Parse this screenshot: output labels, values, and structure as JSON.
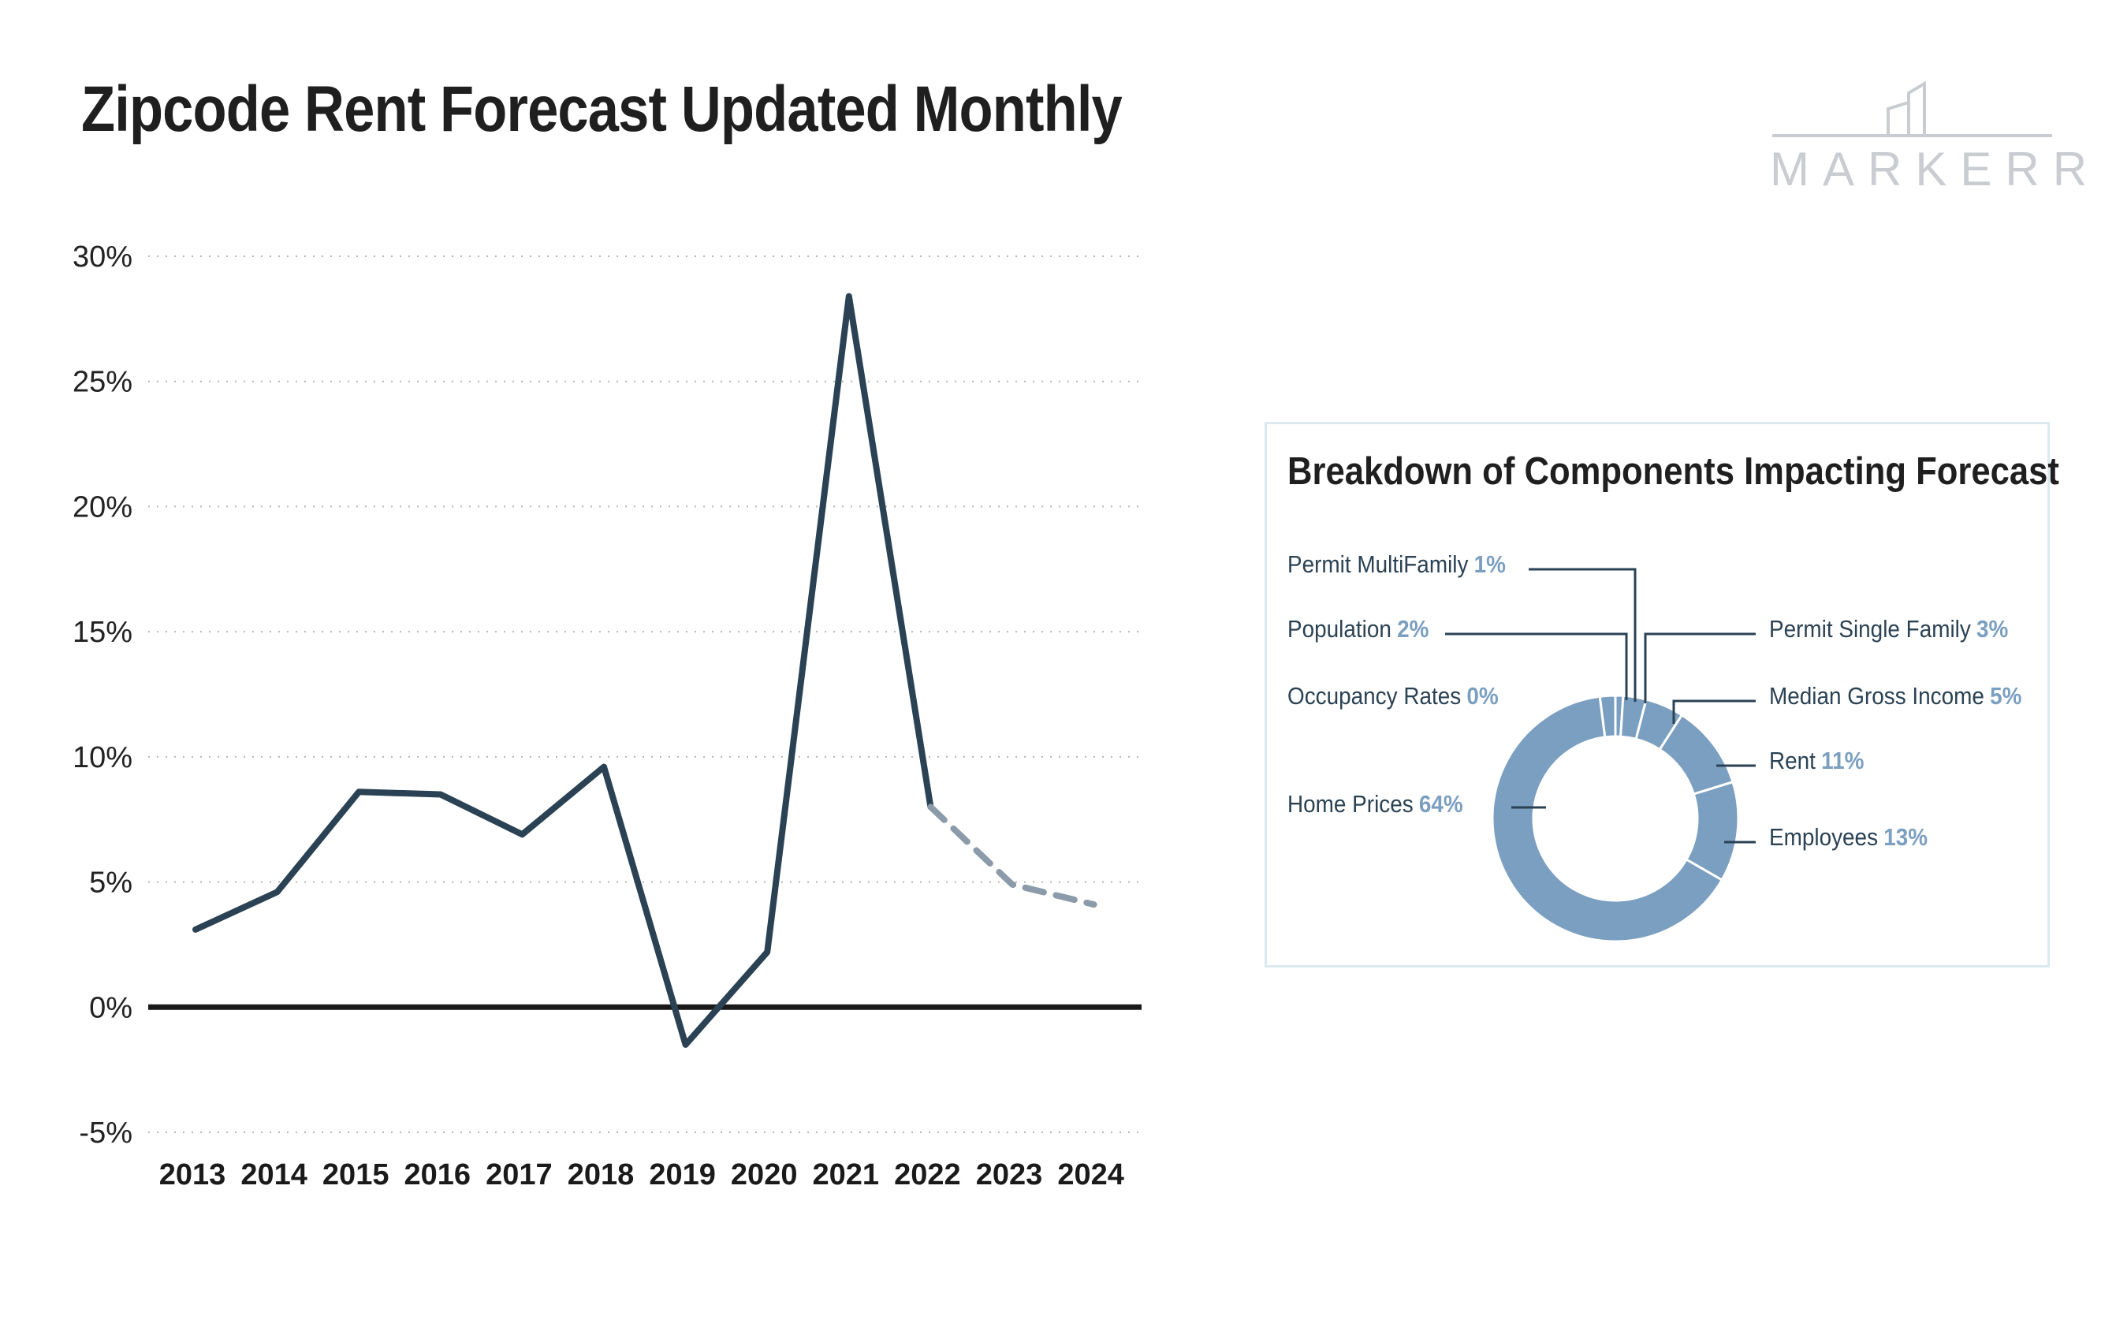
{
  "header": {
    "title": "Zipcode Rent Forecast Updated Monthly"
  },
  "logo": {
    "text": "MARKERR"
  },
  "colors": {
    "line": "#2a4254",
    "forecast": "#8c9ba9",
    "donut": "#7b9fc0",
    "axis": "#1a1a1a",
    "grid": "#b5b5b5"
  },
  "chart_data": [
    {
      "type": "line",
      "title": "Zipcode Rent Forecast Updated Monthly",
      "xlabel": "",
      "ylabel": "",
      "x": [
        "2013",
        "2014",
        "2015",
        "2016",
        "2017",
        "2018",
        "2019",
        "2020",
        "2021",
        "2022",
        "2023",
        "2024"
      ],
      "ytick_labels": [
        "30%",
        "25%",
        "20%",
        "15%",
        "10%",
        "5%",
        "0%",
        "-5%"
      ],
      "yticks": [
        30,
        25,
        20,
        15,
        10,
        5,
        0,
        -5
      ],
      "ylim": [
        -5,
        30
      ],
      "grid": true,
      "series": [
        {
          "style": "solid",
          "x": [
            2013,
            2014,
            2015,
            2016,
            2017,
            2018,
            2019,
            2020,
            2021,
            2022
          ],
          "values": [
            3.1,
            4.6,
            8.6,
            8.5,
            6.9,
            9.6,
            -1.5,
            2.2,
            28.4,
            8.0
          ]
        },
        {
          "style": "dashed",
          "x": [
            2022,
            2023,
            2024
          ],
          "values": [
            8.0,
            4.9,
            4.1
          ]
        }
      ]
    },
    {
      "type": "pie",
      "title": "Breakdown of Components Impacting Forecast",
      "slices": [
        {
          "label": "Permit MultiFamily",
          "value": 1,
          "pct": "1%"
        },
        {
          "label": "Permit Single Family",
          "value": 3,
          "pct": "3%"
        },
        {
          "label": "Median Gross Income",
          "value": 5,
          "pct": "5%"
        },
        {
          "label": "Rent",
          "value": 11,
          "pct": "11%"
        },
        {
          "label": "Employees",
          "value": 13,
          "pct": "13%"
        },
        {
          "label": "Home Prices",
          "value": 64,
          "pct": "64%"
        },
        {
          "label": "Occupancy Rates",
          "value": 0,
          "pct": "0%"
        },
        {
          "label": "Population",
          "value": 2,
          "pct": "2%"
        }
      ]
    }
  ]
}
